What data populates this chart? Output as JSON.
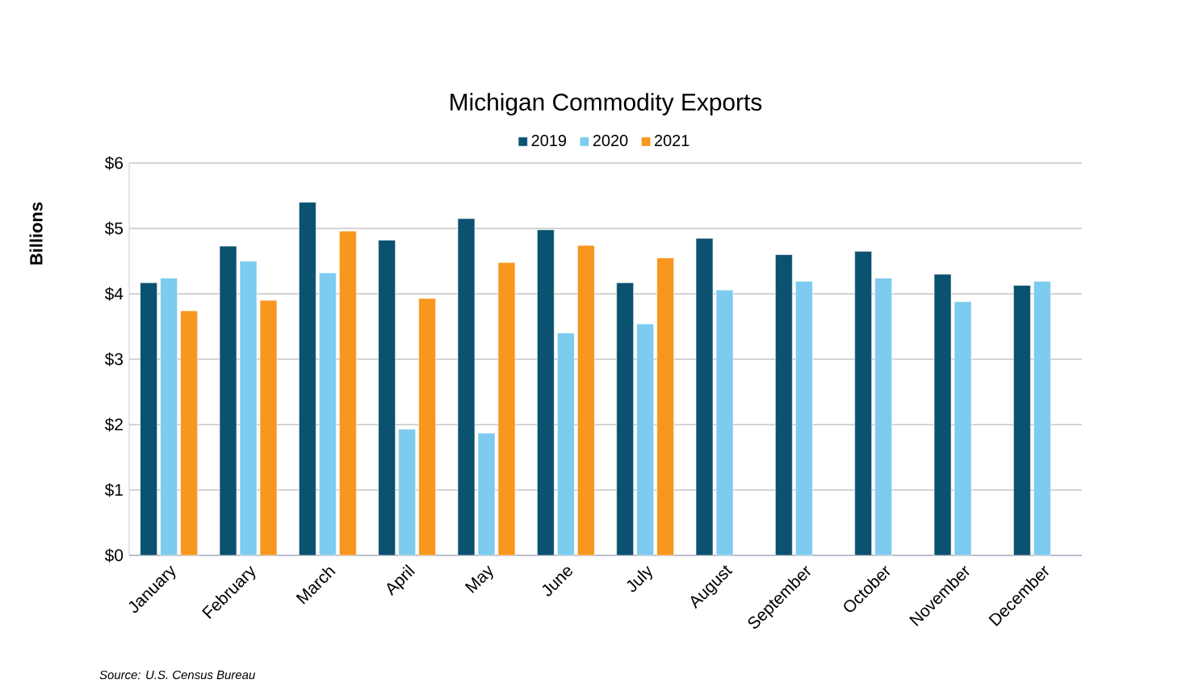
{
  "chart_data": {
    "type": "bar",
    "title": "Michigan Commodity Exports",
    "ylabel": "Billions",
    "categories": [
      "January",
      "February",
      "March",
      "April",
      "May",
      "June",
      "July",
      "August",
      "September",
      "October",
      "November",
      "December"
    ],
    "series": [
      {
        "name": "2019",
        "color": "#0b5170",
        "values": [
          4.17,
          4.73,
          5.4,
          4.82,
          5.15,
          4.98,
          4.17,
          4.85,
          4.6,
          4.65,
          4.3,
          4.13
        ]
      },
      {
        "name": "2020",
        "color": "#7dcbee",
        "values": [
          4.24,
          4.5,
          4.32,
          1.93,
          1.87,
          3.4,
          3.54,
          4.06,
          4.19,
          4.24,
          3.88,
          4.19
        ]
      },
      {
        "name": "2021",
        "color": "#f7971e",
        "values": [
          3.74,
          3.9,
          4.96,
          3.93,
          4.48,
          4.74,
          4.55,
          null,
          null,
          null,
          null,
          null
        ]
      }
    ],
    "ylim": [
      0,
      6
    ],
    "yticks": [
      {
        "value": 0,
        "label": "$0"
      },
      {
        "value": 1,
        "label": "$1"
      },
      {
        "value": 2,
        "label": "$2"
      },
      {
        "value": 3,
        "label": "$3"
      },
      {
        "value": 4,
        "label": "$4"
      },
      {
        "value": 5,
        "label": "$5"
      },
      {
        "value": 6,
        "label": "$6"
      }
    ],
    "grid": "y",
    "legend": "top",
    "annotations": [
      "Source: U.S. Census Bureau"
    ]
  }
}
